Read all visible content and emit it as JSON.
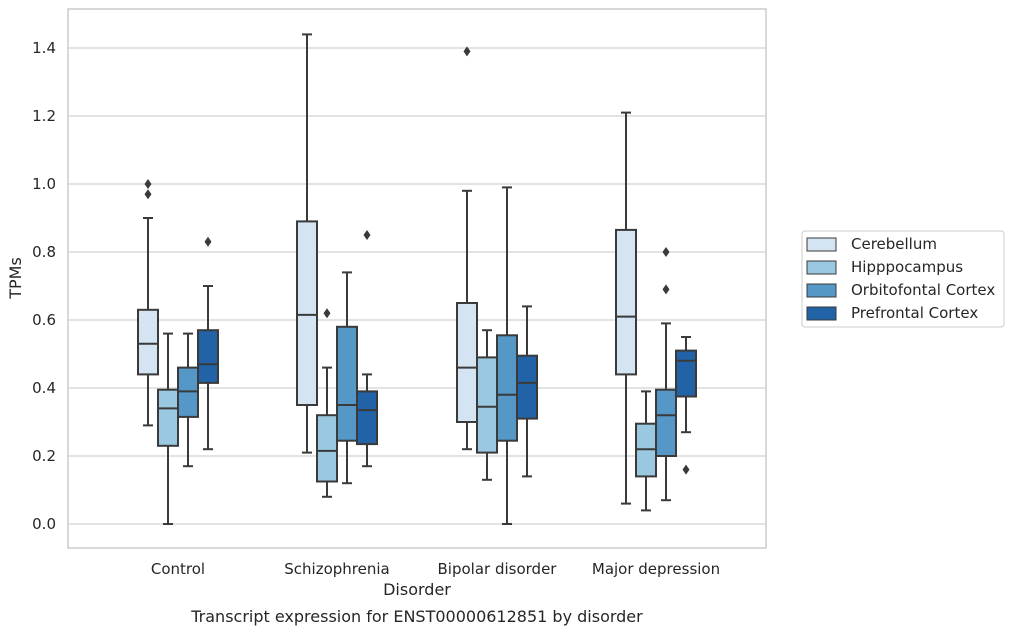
{
  "chart_data": {
    "type": "boxplot",
    "title": "",
    "caption": "Transcript expression for ENST00000612851 by disorder",
    "xlabel": "Disorder",
    "ylabel": "TPMs",
    "ylim": [
      -0.07,
      1.52
    ],
    "yticks": [
      "0.0",
      "0.2",
      "0.4",
      "0.6",
      "0.8",
      "1.0",
      "1.2",
      "1.4"
    ],
    "categories": [
      "Control",
      "Schizophrenia",
      "Bipolar disorder",
      "Major depression"
    ],
    "grid": true,
    "legend_position": "right",
    "series": [
      {
        "name": "Cerebellum",
        "color": "#d4e4f2",
        "boxes": [
          {
            "whislo": 0.29,
            "q1": 0.44,
            "med": 0.53,
            "q3": 0.63,
            "whishi": 0.9,
            "fliers": [
              0.97,
              1.0
            ]
          },
          {
            "whislo": 0.21,
            "q1": 0.35,
            "med": 0.615,
            "q3": 0.89,
            "whishi": 1.44,
            "fliers": []
          },
          {
            "whislo": 0.22,
            "q1": 0.3,
            "med": 0.46,
            "q3": 0.65,
            "whishi": 0.98,
            "fliers": [
              1.39
            ]
          },
          {
            "whislo": 0.06,
            "q1": 0.44,
            "med": 0.61,
            "q3": 0.865,
            "whishi": 1.21,
            "fliers": []
          }
        ]
      },
      {
        "name": "Hipppocampus",
        "color": "#9ac8e0",
        "boxes": [
          {
            "whislo": 0.0,
            "q1": 0.23,
            "med": 0.34,
            "q3": 0.395,
            "whishi": 0.56,
            "fliers": []
          },
          {
            "whislo": 0.08,
            "q1": 0.125,
            "med": 0.215,
            "q3": 0.32,
            "whishi": 0.46,
            "fliers": [
              0.62
            ]
          },
          {
            "whislo": 0.13,
            "q1": 0.21,
            "med": 0.345,
            "q3": 0.49,
            "whishi": 0.57,
            "fliers": []
          },
          {
            "whislo": 0.04,
            "q1": 0.14,
            "med": 0.22,
            "q3": 0.295,
            "whishi": 0.39,
            "fliers": []
          }
        ]
      },
      {
        "name": "Orbitofontal Cortex",
        "color": "#5597c6",
        "boxes": [
          {
            "whislo": 0.17,
            "q1": 0.315,
            "med": 0.39,
            "q3": 0.46,
            "whishi": 0.56,
            "fliers": []
          },
          {
            "whislo": 0.12,
            "q1": 0.245,
            "med": 0.35,
            "q3": 0.58,
            "whishi": 0.74,
            "fliers": []
          },
          {
            "whislo": 0.0,
            "q1": 0.245,
            "med": 0.38,
            "q3": 0.555,
            "whishi": 0.99,
            "fliers": []
          },
          {
            "whislo": 0.07,
            "q1": 0.2,
            "med": 0.32,
            "q3": 0.395,
            "whishi": 0.59,
            "fliers": [
              0.69,
              0.8
            ]
          }
        ]
      },
      {
        "name": "Prefrontal Cortex",
        "color": "#2163a6",
        "boxes": [
          {
            "whislo": 0.22,
            "q1": 0.415,
            "med": 0.47,
            "q3": 0.57,
            "whishi": 0.7,
            "fliers": [
              0.83
            ]
          },
          {
            "whislo": 0.17,
            "q1": 0.235,
            "med": 0.335,
            "q3": 0.39,
            "whishi": 0.44,
            "fliers": [
              0.85
            ]
          },
          {
            "whislo": 0.14,
            "q1": 0.31,
            "med": 0.415,
            "q3": 0.495,
            "whishi": 0.64,
            "fliers": []
          },
          {
            "whislo": 0.27,
            "q1": 0.375,
            "med": 0.48,
            "q3": 0.51,
            "whishi": 0.55,
            "fliers": [
              0.16
            ]
          }
        ]
      }
    ]
  }
}
